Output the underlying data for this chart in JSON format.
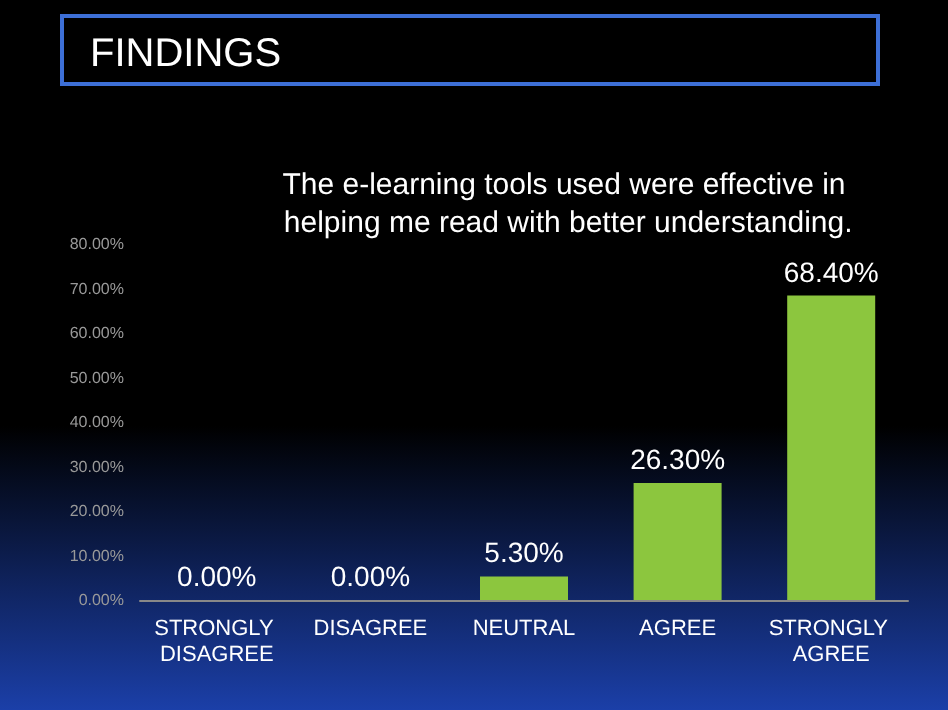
{
  "chart_data": {
    "type": "bar",
    "title": "FINDINGS",
    "subtitle": "The e-learning tools used were effective in helping me read with better understanding.",
    "categories": [
      "STRONGLY DISAGREE",
      "DISAGREE",
      "NEUTRAL",
      "AGREE",
      "STRONGLY AGREE"
    ],
    "values": [
      0,
      0,
      5.3,
      26.3,
      68.4
    ],
    "color": "#8cc63e",
    "value_labels": [
      "0.00%",
      "0.00%",
      "5.30%",
      "26.30%",
      "68.40%"
    ],
    "ylim": [
      0,
      80
    ],
    "yticks": [
      {
        "value": 0,
        "label": "0.00%"
      },
      {
        "value": 10,
        "label": "10.00%"
      },
      {
        "value": 20,
        "label": "20.00%"
      },
      {
        "value": 30,
        "label": "30.00%"
      },
      {
        "value": 40,
        "label": "40.00%"
      },
      {
        "value": 50,
        "label": "50.00%"
      },
      {
        "value": 60,
        "label": "60.00%"
      },
      {
        "value": 70,
        "label": "70.00%"
      },
      {
        "value": 80,
        "label": "80.00%"
      }
    ],
    "grid": false
  }
}
